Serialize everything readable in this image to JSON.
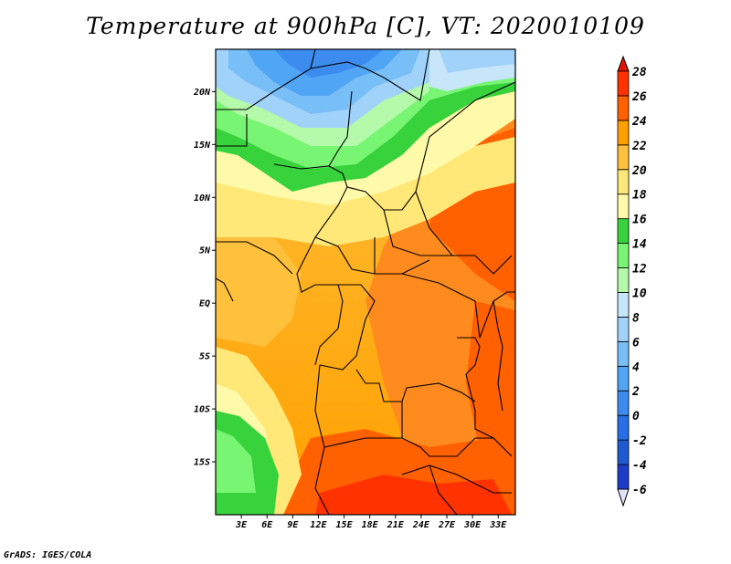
{
  "title": "Temperature at 900hPa [C], VT: 2020010109",
  "credit": "GrADS: IGES/COLA",
  "map": {
    "lon_range": [
      0,
      35
    ],
    "lat_range": [
      -20,
      24
    ],
    "lat_ticks": [
      {
        "value": 20,
        "label": "20N"
      },
      {
        "value": 15,
        "label": "15N"
      },
      {
        "value": 10,
        "label": "10N"
      },
      {
        "value": 5,
        "label": "5N"
      },
      {
        "value": 0,
        "label": "EQ"
      },
      {
        "value": -5,
        "label": "5S"
      },
      {
        "value": -10,
        "label": "10S"
      },
      {
        "value": -15,
        "label": "15S"
      }
    ],
    "lon_ticks": [
      {
        "value": 3,
        "label": "3E"
      },
      {
        "value": 6,
        "label": "6E"
      },
      {
        "value": 9,
        "label": "9E"
      },
      {
        "value": 12,
        "label": "12E"
      },
      {
        "value": 15,
        "label": "15E"
      },
      {
        "value": 18,
        "label": "18E"
      },
      {
        "value": 21,
        "label": "21E"
      },
      {
        "value": 24,
        "label": "24E"
      },
      {
        "value": 27,
        "label": "27E"
      },
      {
        "value": 30,
        "label": "30E"
      },
      {
        "value": 33,
        "label": "33E"
      }
    ]
  },
  "colorbar": {
    "levels": [
      {
        "label": "-6",
        "color": "#0a0a78"
      },
      {
        "label": "-4",
        "color": "#1e3cc8"
      },
      {
        "label": "-2",
        "color": "#1e5ad2"
      },
      {
        "label": "0",
        "color": "#286ee6"
      },
      {
        "label": "2",
        "color": "#3c8cf0"
      },
      {
        "label": "4",
        "color": "#50a5f5"
      },
      {
        "label": "6",
        "color": "#78bef7"
      },
      {
        "label": "8",
        "color": "#a0d2fa"
      },
      {
        "label": "10",
        "color": "#c8e6fa"
      },
      {
        "label": "12",
        "color": "#b4faaa"
      },
      {
        "label": "14",
        "color": "#78f573"
      },
      {
        "label": "16",
        "color": "#37d23c"
      },
      {
        "label": "18",
        "color": "#fffaaa"
      },
      {
        "label": "20",
        "color": "#ffe878"
      },
      {
        "label": "22",
        "color": "#ffc03c"
      },
      {
        "label": "24",
        "color": "#ffa000"
      },
      {
        "label": "26",
        "color": "#ff6000"
      },
      {
        "label": "28",
        "color": "#ff3200"
      }
    ],
    "below_color": "#e1e1fa",
    "above_color": "#e11400"
  }
}
